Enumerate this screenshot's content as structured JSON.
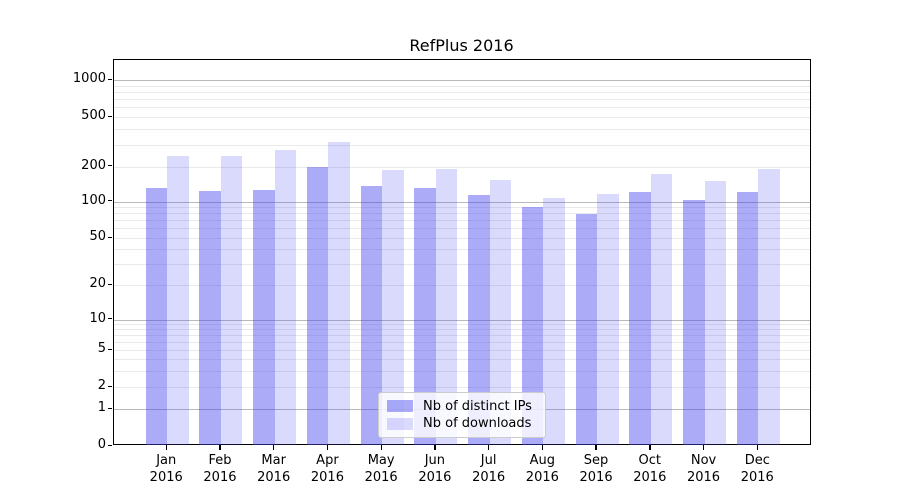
{
  "title": "RefPlus 2016",
  "colors": {
    "bar_distinct_ips": "rgba(68,68,238,0.45)",
    "bar_downloads": "rgba(68,68,238,0.20)",
    "bar_distinct_ips_hex": "#aaaaf7",
    "bar_downloads_hex": "#dadafb",
    "grid_major": "#b9b9b9",
    "grid_minor": "#e9e9e9",
    "axis": "#000000"
  },
  "chart_data": {
    "type": "bar",
    "title": "RefPlus 2016",
    "categories": [
      "Jan 2016",
      "Feb 2016",
      "Mar 2016",
      "Apr 2016",
      "May 2016",
      "Jun 2016",
      "Jul 2016",
      "Aug 2016",
      "Sep 2016",
      "Oct 2016",
      "Nov 2016",
      "Dec 2016"
    ],
    "series": [
      {
        "name": "Nb of distinct IPs",
        "values": [
          130,
          123,
          126,
          200,
          136,
          131,
          113,
          90,
          79,
          120,
          104,
          121
        ]
      },
      {
        "name": "Nb of downloads",
        "values": [
          245,
          245,
          270,
          312,
          186,
          190,
          153,
          108,
          115,
          174,
          149,
          189
        ]
      }
    ],
    "yscale": "symlog",
    "y_ticks": [
      0,
      1,
      2,
      5,
      10,
      20,
      50,
      100,
      200,
      500,
      1000
    ],
    "ylim": [
      0,
      1450
    ],
    "grid": true,
    "legend_position": "lower center",
    "xlabel": "",
    "ylabel": ""
  }
}
